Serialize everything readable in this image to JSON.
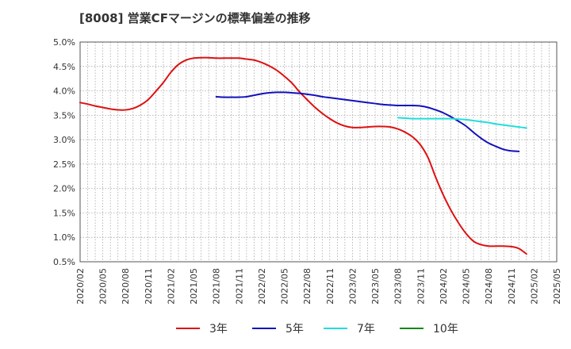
{
  "chart_data": {
    "type": "line",
    "title": "[8008]  営業CFマージンの標準偏差の推移",
    "xlabel": "",
    "ylabel": "",
    "x": [
      "2020/02",
      "2020/05",
      "2020/08",
      "2020/11",
      "2021/02",
      "2021/05",
      "2021/08",
      "2021/11",
      "2022/02",
      "2022/05",
      "2022/08",
      "2022/11",
      "2023/02",
      "2023/05",
      "2023/08",
      "2023/11",
      "2024/02",
      "2024/05",
      "2024/08",
      "2024/11",
      "2025/02",
      "2025/05"
    ],
    "ylim": [
      0.5,
      5.0
    ],
    "yticks": [
      "0.5%",
      "1.0%",
      "1.5%",
      "2.0%",
      "2.5%",
      "3.0%",
      "3.5%",
      "4.0%",
      "4.5%",
      "5.0%"
    ],
    "grid": true,
    "legend_position": "bottom",
    "series": [
      {
        "name": "3年",
        "color": "#dd1111",
        "points": [
          [
            "2020/02",
            3.76
          ],
          [
            "2020/03",
            3.73
          ],
          [
            "2020/04",
            3.69
          ],
          [
            "2020/05",
            3.66
          ],
          [
            "2020/06",
            3.63
          ],
          [
            "2020/07",
            3.61
          ],
          [
            "2020/08",
            3.61
          ],
          [
            "2020/09",
            3.64
          ],
          [
            "2020/10",
            3.71
          ],
          [
            "2020/11",
            3.82
          ],
          [
            "2020/12",
            3.99
          ],
          [
            "2021/01",
            4.17
          ],
          [
            "2021/02",
            4.38
          ],
          [
            "2021/03",
            4.54
          ],
          [
            "2021/04",
            4.63
          ],
          [
            "2021/05",
            4.67
          ],
          [
            "2021/06",
            4.68
          ],
          [
            "2021/07",
            4.68
          ],
          [
            "2021/08",
            4.67
          ],
          [
            "2021/09",
            4.67
          ],
          [
            "2021/10",
            4.67
          ],
          [
            "2021/11",
            4.67
          ],
          [
            "2021/12",
            4.65
          ],
          [
            "2022/01",
            4.63
          ],
          [
            "2022/02",
            4.58
          ],
          [
            "2022/03",
            4.51
          ],
          [
            "2022/04",
            4.42
          ],
          [
            "2022/05",
            4.3
          ],
          [
            "2022/06",
            4.16
          ],
          [
            "2022/07",
            3.98
          ],
          [
            "2022/08",
            3.82
          ],
          [
            "2022/09",
            3.67
          ],
          [
            "2022/10",
            3.54
          ],
          [
            "2022/11",
            3.43
          ],
          [
            "2022/12",
            3.34
          ],
          [
            "2023/01",
            3.28
          ],
          [
            "2023/02",
            3.25
          ],
          [
            "2023/03",
            3.25
          ],
          [
            "2023/04",
            3.26
          ],
          [
            "2023/05",
            3.27
          ],
          [
            "2023/06",
            3.27
          ],
          [
            "2023/07",
            3.26
          ],
          [
            "2023/08",
            3.22
          ],
          [
            "2023/09",
            3.15
          ],
          [
            "2023/10",
            3.05
          ],
          [
            "2023/11",
            2.89
          ],
          [
            "2023/12",
            2.63
          ],
          [
            "2024/01",
            2.23
          ],
          [
            "2024/02",
            1.87
          ],
          [
            "2024/03",
            1.56
          ],
          [
            "2024/04",
            1.3
          ],
          [
            "2024/05",
            1.08
          ],
          [
            "2024/06",
            0.92
          ],
          [
            "2024/07",
            0.85
          ],
          [
            "2024/08",
            0.82
          ],
          [
            "2024/09",
            0.82
          ],
          [
            "2024/10",
            0.82
          ],
          [
            "2024/11",
            0.81
          ],
          [
            "2024/12",
            0.77
          ],
          [
            "2025/01",
            0.66
          ]
        ]
      },
      {
        "name": "5年",
        "color": "#1111bb",
        "points": [
          [
            "2021/08",
            3.88
          ],
          [
            "2021/09",
            3.87
          ],
          [
            "2021/10",
            3.87
          ],
          [
            "2021/11",
            3.87
          ],
          [
            "2021/12",
            3.88
          ],
          [
            "2022/01",
            3.91
          ],
          [
            "2022/02",
            3.94
          ],
          [
            "2022/03",
            3.96
          ],
          [
            "2022/04",
            3.97
          ],
          [
            "2022/05",
            3.97
          ],
          [
            "2022/06",
            3.96
          ],
          [
            "2022/07",
            3.95
          ],
          [
            "2022/08",
            3.93
          ],
          [
            "2022/09",
            3.91
          ],
          [
            "2022/10",
            3.88
          ],
          [
            "2022/11",
            3.86
          ],
          [
            "2022/12",
            3.84
          ],
          [
            "2023/01",
            3.82
          ],
          [
            "2023/02",
            3.8
          ],
          [
            "2023/03",
            3.78
          ],
          [
            "2023/04",
            3.76
          ],
          [
            "2023/05",
            3.74
          ],
          [
            "2023/06",
            3.72
          ],
          [
            "2023/07",
            3.71
          ],
          [
            "2023/08",
            3.7
          ],
          [
            "2023/09",
            3.7
          ],
          [
            "2023/10",
            3.7
          ],
          [
            "2023/11",
            3.69
          ],
          [
            "2023/12",
            3.66
          ],
          [
            "2024/01",
            3.61
          ],
          [
            "2024/02",
            3.55
          ],
          [
            "2024/03",
            3.47
          ],
          [
            "2024/04",
            3.38
          ],
          [
            "2024/05",
            3.28
          ],
          [
            "2024/06",
            3.15
          ],
          [
            "2024/07",
            3.03
          ],
          [
            "2024/08",
            2.93
          ],
          [
            "2024/09",
            2.86
          ],
          [
            "2024/10",
            2.8
          ],
          [
            "2024/11",
            2.77
          ],
          [
            "2024/12",
            2.76
          ]
        ]
      },
      {
        "name": "7年",
        "color": "#22dddd",
        "points": [
          [
            "2023/08",
            3.45
          ],
          [
            "2023/09",
            3.44
          ],
          [
            "2023/10",
            3.43
          ],
          [
            "2023/11",
            3.43
          ],
          [
            "2023/12",
            3.43
          ],
          [
            "2024/01",
            3.43
          ],
          [
            "2024/02",
            3.43
          ],
          [
            "2024/03",
            3.43
          ],
          [
            "2024/04",
            3.42
          ],
          [
            "2024/05",
            3.41
          ],
          [
            "2024/06",
            3.39
          ],
          [
            "2024/07",
            3.37
          ],
          [
            "2024/08",
            3.35
          ],
          [
            "2024/09",
            3.32
          ],
          [
            "2024/10",
            3.3
          ],
          [
            "2024/11",
            3.28
          ],
          [
            "2024/12",
            3.26
          ],
          [
            "2025/01",
            3.24
          ]
        ]
      },
      {
        "name": "10年",
        "color": "#118811",
        "points": []
      }
    ]
  }
}
